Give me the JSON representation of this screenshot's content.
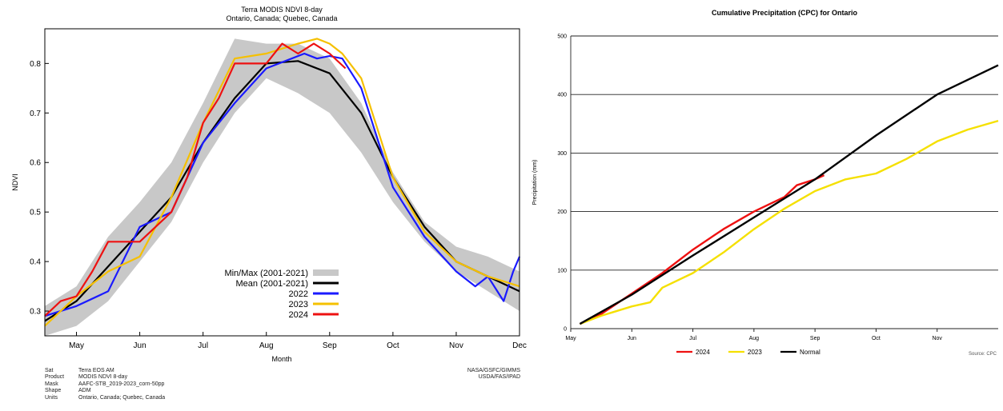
{
  "chart_data": [
    {
      "type": "line",
      "title": "Terra MODIS NDVI 8-day",
      "subtitle": "Ontario, Canada; Quebec, Canada",
      "xlabel": "Month",
      "ylabel": "NDVI",
      "xlim": [
        0,
        7.5
      ],
      "ylim": [
        0.25,
        0.87
      ],
      "x_ticks": [
        {
          "label": "May",
          "x": 0.5
        },
        {
          "label": "Jun",
          "x": 1.5
        },
        {
          "label": "Jul",
          "x": 2.5
        },
        {
          "label": "Aug",
          "x": 3.5
        },
        {
          "label": "Sep",
          "x": 4.5
        },
        {
          "label": "Oct",
          "x": 5.5
        },
        {
          "label": "Nov",
          "x": 6.5
        },
        {
          "label": "Dec",
          "x": 7.5
        }
      ],
      "y_ticks": [
        0.3,
        0.4,
        0.5,
        0.6,
        0.7,
        0.8
      ],
      "grid": false,
      "legend_position": "bottom-center",
      "band": {
        "name": "Min/Max (2001-2021)",
        "color": "#c8c8c8",
        "x": [
          0,
          0.5,
          1.0,
          1.5,
          2.0,
          2.5,
          3.0,
          3.5,
          4.0,
          4.5,
          5.0,
          5.5,
          6.0,
          6.5,
          7.0,
          7.5
        ],
        "lower": [
          0.25,
          0.27,
          0.32,
          0.4,
          0.48,
          0.6,
          0.7,
          0.77,
          0.74,
          0.7,
          0.62,
          0.52,
          0.44,
          0.38,
          0.34,
          0.3
        ],
        "upper": [
          0.31,
          0.35,
          0.45,
          0.52,
          0.6,
          0.72,
          0.85,
          0.84,
          0.84,
          0.81,
          0.72,
          0.58,
          0.48,
          0.43,
          0.41,
          0.38
        ]
      },
      "series": [
        {
          "name": "Mean (2001-2021)",
          "color": "#000000",
          "x": [
            0,
            0.5,
            1.0,
            1.5,
            2.0,
            2.5,
            3.0,
            3.5,
            4.0,
            4.5,
            5.0,
            5.5,
            6.0,
            6.5,
            7.0,
            7.5
          ],
          "values": [
            0.28,
            0.32,
            0.39,
            0.46,
            0.53,
            0.64,
            0.73,
            0.8,
            0.805,
            0.78,
            0.7,
            0.57,
            0.47,
            0.4,
            0.37,
            0.34
          ]
        },
        {
          "name": "2022",
          "color": "#1a1aff",
          "x": [
            0,
            0.5,
            1.0,
            1.5,
            2.0,
            2.5,
            3.0,
            3.5,
            3.9,
            4.1,
            4.3,
            4.5,
            4.7,
            5.0,
            5.5,
            6.0,
            6.5,
            6.8,
            7.0,
            7.25,
            7.4,
            7.5
          ],
          "values": [
            0.29,
            0.31,
            0.34,
            0.47,
            0.5,
            0.64,
            0.72,
            0.79,
            0.81,
            0.82,
            0.81,
            0.815,
            0.81,
            0.75,
            0.55,
            0.45,
            0.38,
            0.35,
            0.37,
            0.32,
            0.38,
            0.41
          ]
        },
        {
          "name": "2023",
          "color": "#f5c000",
          "x": [
            0,
            0.5,
            1.0,
            1.5,
            2.0,
            2.5,
            3.0,
            3.5,
            4.0,
            4.3,
            4.5,
            4.7,
            5.0,
            5.5,
            6.0,
            6.5,
            7.0,
            7.5
          ],
          "values": [
            0.27,
            0.33,
            0.38,
            0.41,
            0.53,
            0.68,
            0.81,
            0.82,
            0.84,
            0.85,
            0.84,
            0.82,
            0.77,
            0.57,
            0.46,
            0.4,
            0.37,
            0.35
          ]
        },
        {
          "name": "2024",
          "color": "#ee1111",
          "x": [
            0,
            0.25,
            0.5,
            0.75,
            1.0,
            1.25,
            1.5,
            1.75,
            2.0,
            2.25,
            2.5,
            2.75,
            3.0,
            3.25,
            3.5,
            3.75,
            4.0,
            4.25,
            4.5,
            4.75
          ],
          "values": [
            0.29,
            0.32,
            0.33,
            0.38,
            0.44,
            0.44,
            0.44,
            0.47,
            0.5,
            0.57,
            0.68,
            0.73,
            0.8,
            0.8,
            0.8,
            0.84,
            0.82,
            0.84,
            0.82,
            0.79
          ]
        }
      ],
      "footer": {
        "rows": [
          {
            "label": "Sat",
            "value": "Terra EOS AM"
          },
          {
            "label": "Product",
            "value": "MODIS NDVI 8-day"
          },
          {
            "label": "Mask",
            "value": "AAFC-STB_2019-2023_corn-50pp"
          },
          {
            "label": "Shape",
            "value": "ADM"
          },
          {
            "label": "Units",
            "value": "Ontario, Canada; Quebec, Canada"
          }
        ],
        "credits": [
          "NASA/GSFC/GIMMS",
          "USDA/FAS/IPAD"
        ]
      }
    },
    {
      "type": "line",
      "title": "Cumulative Precipitation (CPC) for Ontario",
      "xlabel": "",
      "ylabel": "Precipitation (mm)",
      "xlim": [
        0,
        7.0
      ],
      "ylim": [
        0,
        500
      ],
      "x_ticks": [
        {
          "label": "May",
          "x": 0
        },
        {
          "label": "Jun",
          "x": 1
        },
        {
          "label": "Jul",
          "x": 2
        },
        {
          "label": "Aug",
          "x": 3
        },
        {
          "label": "Sep",
          "x": 4
        },
        {
          "label": "Oct",
          "x": 5
        },
        {
          "label": "Nov",
          "x": 6
        }
      ],
      "y_ticks": [
        0,
        100,
        200,
        300,
        400,
        500
      ],
      "grid": true,
      "legend_position": "bottom-center",
      "source": "Source: CPC",
      "series": [
        {
          "name": "2024",
          "color": "#ee1111",
          "x": [
            0.15,
            0.5,
            1.0,
            1.5,
            2.0,
            2.5,
            3.0,
            3.5,
            3.7,
            4.0,
            4.15
          ],
          "values": [
            8,
            25,
            60,
            95,
            135,
            170,
            200,
            225,
            245,
            255,
            262
          ]
        },
        {
          "name": "2023",
          "color": "#f5e000",
          "x": [
            0.15,
            0.5,
            1.0,
            1.3,
            1.5,
            2.0,
            2.5,
            3.0,
            3.5,
            4.0,
            4.5,
            5.0,
            5.5,
            6.0,
            6.5,
            7.0
          ],
          "values": [
            8,
            22,
            38,
            45,
            70,
            95,
            130,
            170,
            205,
            235,
            255,
            265,
            290,
            320,
            340,
            355
          ]
        },
        {
          "name": "Normal",
          "color": "#000000",
          "x": [
            0.15,
            1.0,
            2.0,
            3.0,
            4.0,
            5.0,
            6.0,
            7.0
          ],
          "values": [
            8,
            58,
            125,
            190,
            255,
            330,
            400,
            450
          ]
        }
      ]
    }
  ]
}
